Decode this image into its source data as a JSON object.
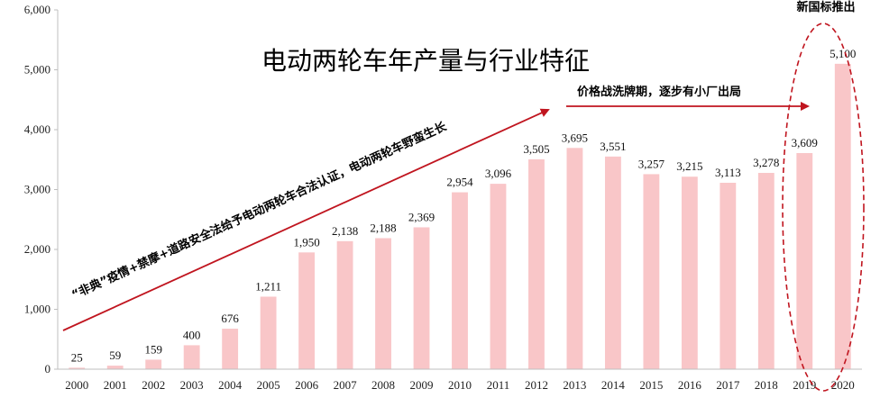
{
  "chart_data": {
    "type": "bar",
    "title": "电动两轮车年产量与行业特征",
    "categories": [
      "2000",
      "2001",
      "2002",
      "2003",
      "2004",
      "2005",
      "2006",
      "2007",
      "2008",
      "2009",
      "2010",
      "2011",
      "2012",
      "2013",
      "2014",
      "2015",
      "2016",
      "2017",
      "2018",
      "2019",
      "2020"
    ],
    "values": [
      25,
      59,
      159,
      400,
      676,
      1211,
      1950,
      2138,
      2188,
      2369,
      2954,
      3096,
      3505,
      3695,
      3551,
      3257,
      3215,
      3113,
      3278,
      3609,
      5100
    ],
    "value_labels": [
      "25",
      "59",
      "159",
      "400",
      "676",
      "1,211",
      "1,950",
      "2,138",
      "2,188",
      "2,369",
      "2,954",
      "3,096",
      "3,505",
      "3,695",
      "3,551",
      "3,257",
      "3,215",
      "3,113",
      "3,278",
      "3,609",
      "5,100"
    ],
    "ylim": [
      0,
      6000
    ],
    "yticks": [
      0,
      1000,
      2000,
      3000,
      4000,
      5000,
      6000
    ],
    "ytick_labels": [
      "0",
      "1,000",
      "2,000",
      "3,000",
      "4,000",
      "5,000",
      "6,000"
    ],
    "xlabel": "",
    "ylabel": "",
    "grid": false,
    "bar_color": "#f9c6c8",
    "annotations": {
      "growth_text": "“非典”疫情+禁摩+道路安全法给予电动两轮车合法认证，电动两轮车野蛮生长",
      "consolidation_text": "价格战洗牌期，逐步有小厂出局",
      "new_standard_text": "新国标推出"
    },
    "accent_color": "#c0151f"
  }
}
